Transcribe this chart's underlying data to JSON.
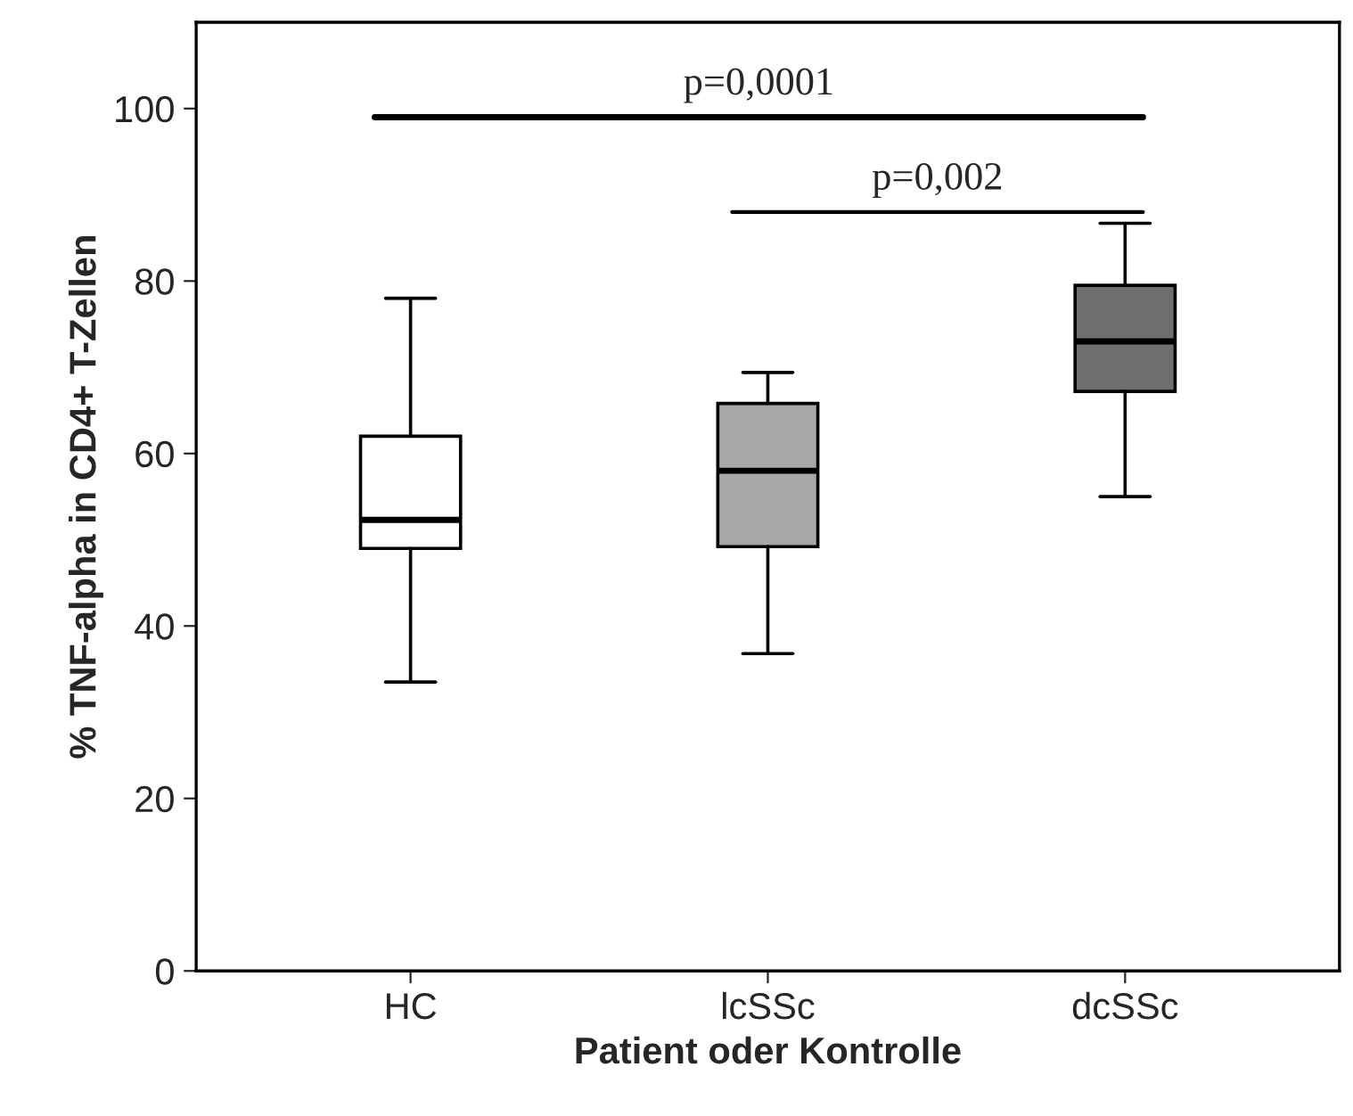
{
  "chart_data": {
    "type": "box",
    "xlabel": "Patient oder Kontrolle",
    "ylabel": "% TNF-alpha in CD4+ T-Zellen",
    "categories": [
      "HC",
      "lcSSc",
      "dcSSc"
    ],
    "boxes": [
      {
        "low": 33.5,
        "q1": 49,
        "median": 52.3,
        "q3": 62,
        "high": 78
      },
      {
        "low": 36.8,
        "q1": 49.2,
        "median": 58,
        "q3": 65.8,
        "high": 69.4
      },
      {
        "low": 55,
        "q1": 67.2,
        "median": 73,
        "q3": 79.5,
        "high": 86.7
      }
    ],
    "colors": [
      "#ffffff",
      "#a8a8a8",
      "#6f6f6f"
    ],
    "ylim": [
      0,
      110
    ],
    "yticks": [
      0,
      20,
      40,
      60,
      80,
      100
    ],
    "grid": false,
    "annotations": [
      "p=0,0001",
      "p=0,002"
    ]
  }
}
